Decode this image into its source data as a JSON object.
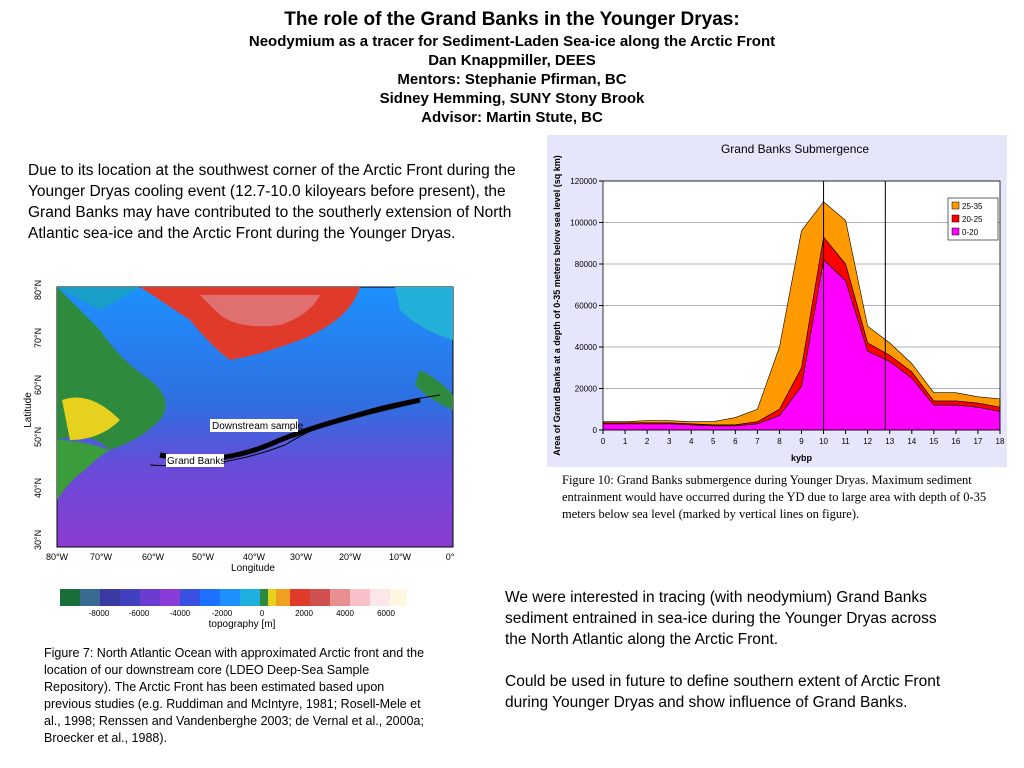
{
  "header": {
    "title": "The role of the Grand Banks in the Younger Dryas:",
    "lines": [
      "Neodymium as a tracer for Sediment-Laden Sea-ice along the Arctic Front",
      "Dan Knappmiller, DEES",
      "Mentors: Stephanie Pfirman, BC",
      "Sidney Hemming, SUNY Stony Brook",
      "Advisor: Martin Stute, BC"
    ]
  },
  "intro": "Due to its location at the southwest corner of the Arctic Front during the Younger Dryas cooling event (12.7-10.0 kiloyears before present), the Grand Banks may have contributed to the southerly extension of North Atlantic sea-ice and the Arctic Front during the Younger Dryas.",
  "map": {
    "lat_labels": [
      "80°N",
      "70°N",
      "60°N",
      "50°N",
      "40°N",
      "30°N"
    ],
    "lon_labels": [
      "80°W",
      "70°W",
      "60°W",
      "50°W",
      "40°W",
      "30°W",
      "20°W",
      "10°W",
      "0°"
    ],
    "y_label": "Latitude",
    "x_label": "Longitude",
    "annotations": [
      "Downstream sample",
      "Grand Banks"
    ],
    "colorbar_ticks": [
      "-8000",
      "-6000",
      "-4000",
      "-2000",
      "0",
      "2000",
      "4000",
      "6000"
    ],
    "colorbar_label": "topography [m]"
  },
  "figure7_caption": "Figure 7: North Atlantic Ocean with approximated Arctic front and the location of our downstream core (LDEO Deep-Sea Sample Repository).  The Arctic Front has been estimated based upon previous studies (e.g. Ruddiman and McIntyre, 1981; Rosell-Mele et al., 1998; Renssen and Vandenberghe 2003; de Vernal et al., 2000a; Broecker et al., 1988).",
  "chart_data": {
    "type": "stacked_area",
    "title": "Grand Banks Submergence",
    "x_label": "kybp",
    "y_label": "Area of Grand Banks at a depth of 0-35 meters below sea level (sq km)",
    "x": [
      0,
      1,
      2,
      3,
      4,
      5,
      6,
      7,
      8,
      9,
      10,
      11,
      12,
      13,
      14,
      15,
      16,
      17,
      18
    ],
    "series": [
      {
        "name": "0-20",
        "color": "#ff00ff",
        "values": [
          3000,
          3000,
          3000,
          3000,
          2500,
          2000,
          2000,
          3000,
          7000,
          21000,
          82000,
          72000,
          38000,
          33000,
          25000,
          12000,
          12000,
          11000,
          9000
        ]
      },
      {
        "name": "20-25",
        "color": "#ff0000",
        "values": [
          500,
          500,
          500,
          500,
          500,
          500,
          500,
          1000,
          3000,
          9000,
          11000,
          8000,
          4000,
          3000,
          3000,
          2000,
          2000,
          2000,
          2000
        ]
      },
      {
        "name": "25-35",
        "color": "#ff9900",
        "values": [
          500,
          500,
          1000,
          1000,
          1000,
          1500,
          3500,
          6000,
          30000,
          66000,
          17000,
          21000,
          8000,
          6000,
          4000,
          4000,
          4000,
          3000,
          4000
        ]
      }
    ],
    "xlim": [
      0,
      18
    ],
    "xticks": [
      0,
      1,
      2,
      3,
      4,
      5,
      6,
      7,
      8,
      9,
      10,
      11,
      12,
      13,
      14,
      15,
      16,
      17,
      18
    ],
    "ylim": [
      0,
      120000
    ],
    "yticks": [
      0,
      20000,
      40000,
      60000,
      80000,
      100000,
      120000
    ],
    "vlines": [
      10,
      12.8
    ],
    "grid": true,
    "legend": "upper right"
  },
  "figure10_caption": "Figure 10: Grand Banks submergence during Younger Dryas.  Maximum sediment entrainment would have occurred during the YD due to large area with depth of 0-35 meters below sea level (marked by vertical lines on figure).",
  "body": [
    "We were interested in tracing (with neodymium) Grand Banks sediment entrained in sea-ice during the Younger Dryas across the North Atlantic along the Arctic Front.",
    "Could be used in future to define southern extent of Arctic Front during Younger Dryas and show influence of Grand Banks."
  ]
}
